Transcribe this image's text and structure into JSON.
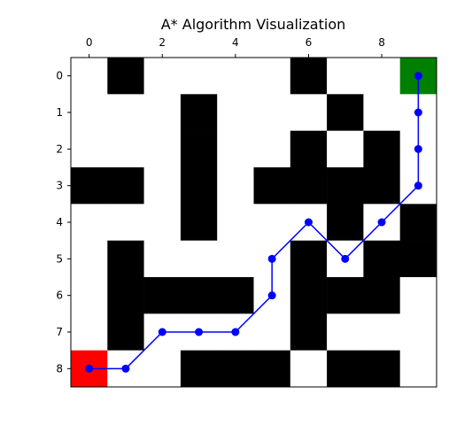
{
  "chart_data": {
    "type": "heatmap",
    "title": "A* Algorithm Visualization",
    "xlabel": "",
    "ylabel": "",
    "rows": 9,
    "cols": 10,
    "x_ticks": [
      0,
      2,
      4,
      6,
      8
    ],
    "y_ticks": [
      0,
      1,
      2,
      3,
      4,
      5,
      6,
      7,
      8
    ],
    "x_tick_position": "top",
    "grid": [
      [
        0,
        1,
        0,
        0,
        0,
        0,
        1,
        0,
        0,
        0
      ],
      [
        0,
        0,
        0,
        1,
        0,
        0,
        0,
        1,
        0,
        0
      ],
      [
        0,
        0,
        0,
        1,
        0,
        0,
        1,
        0,
        1,
        0
      ],
      [
        1,
        1,
        0,
        1,
        0,
        1,
        1,
        1,
        1,
        0
      ],
      [
        0,
        0,
        0,
        1,
        0,
        0,
        0,
        1,
        0,
        1
      ],
      [
        0,
        1,
        0,
        0,
        0,
        0,
        1,
        0,
        1,
        1
      ],
      [
        0,
        1,
        1,
        1,
        1,
        0,
        1,
        1,
        1,
        0
      ],
      [
        0,
        1,
        0,
        0,
        0,
        0,
        1,
        0,
        0,
        0
      ],
      [
        0,
        0,
        0,
        1,
        1,
        1,
        0,
        1,
        1,
        0
      ]
    ],
    "start": {
      "x": 9,
      "y": 0
    },
    "goal": {
      "x": 0,
      "y": 8
    },
    "path": [
      {
        "x": 9,
        "y": 0
      },
      {
        "x": 9,
        "y": 1
      },
      {
        "x": 9,
        "y": 2
      },
      {
        "x": 9,
        "y": 3
      },
      {
        "x": 8,
        "y": 4
      },
      {
        "x": 7,
        "y": 5
      },
      {
        "x": 6,
        "y": 4
      },
      {
        "x": 5,
        "y": 5
      },
      {
        "x": 5,
        "y": 6
      },
      {
        "x": 4,
        "y": 7
      },
      {
        "x": 3,
        "y": 7
      },
      {
        "x": 2,
        "y": 7
      },
      {
        "x": 1,
        "y": 8
      },
      {
        "x": 0,
        "y": 8
      }
    ],
    "colors": {
      "free": "#ffffff",
      "obstacle": "#000000",
      "start": "#008000",
      "goal": "#ff0000",
      "path": "#0000ff"
    }
  }
}
